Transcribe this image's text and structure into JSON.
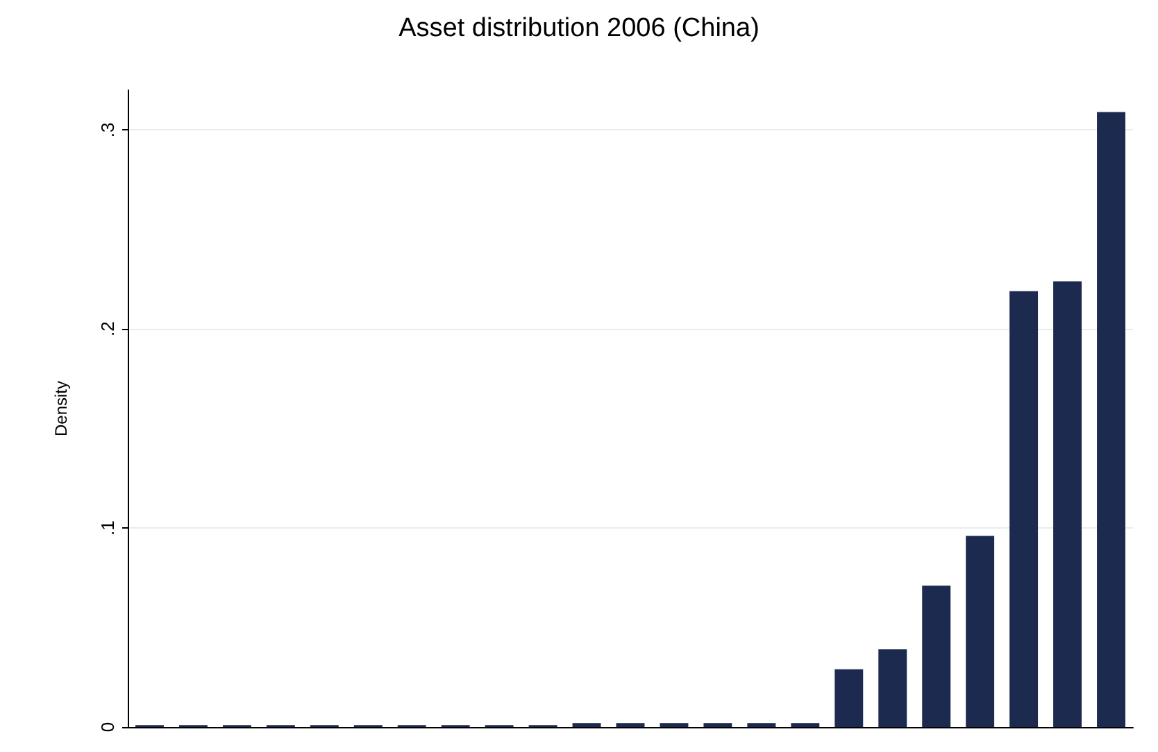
{
  "chart_data": {
    "type": "bar",
    "title": "Asset distribution 2006 (China)",
    "ylabel": "Density",
    "categories": [
      null,
      null,
      null,
      null,
      null,
      null,
      null,
      null,
      null,
      null,
      null,
      null,
      null,
      null,
      null,
      null,
      null,
      null,
      null,
      null,
      null,
      null,
      null
    ],
    "values": [
      0.001,
      0.001,
      0.001,
      0.001,
      0.001,
      0.001,
      0.001,
      0.001,
      0.001,
      0.001,
      0.002,
      0.002,
      0.002,
      0.002,
      0.002,
      0.002,
      0.029,
      0.039,
      0.071,
      0.096,
      0.219,
      0.224,
      0.309
    ],
    "color": "#1c2a4f",
    "ylim": [
      0,
      0.32
    ],
    "yticks": [
      0,
      {
        "value": 0.1,
        "label": ".1"
      },
      {
        "value": 0.2,
        "label": ".2"
      },
      {
        "value": 0.3,
        "label": ".3"
      }
    ],
    "grid": "y"
  }
}
